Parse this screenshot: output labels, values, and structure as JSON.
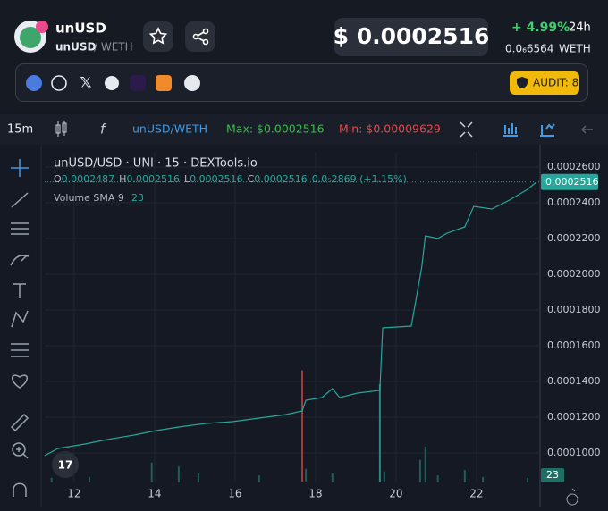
{
  "header": {
    "token": "unUSD",
    "base": "unUSD",
    "quote": "/ WETH",
    "price": "$ 0.0002516",
    "change": "+ 4.99%",
    "period": "24h",
    "native_price": "0.0₆6564",
    "native_unit": "WETH",
    "audit": "AUDIT: 8"
  },
  "toolbar": {
    "interval": "15m",
    "pair": "unUSD/WETH",
    "max": "Max: $0.0002516",
    "min": "Min: $0.00009629"
  },
  "chart_data": {
    "type": "line",
    "title": "unUSD/USD · UNI · 15 · DEXTools.io",
    "ohlc": [
      {
        "key": "O",
        "value": "0.0002487"
      },
      {
        "key": "H",
        "value": "0.0002516"
      },
      {
        "key": "L",
        "value": "0.0002516"
      },
      {
        "key": "C",
        "value": "0.0002516"
      }
    ],
    "ohlc_change": "0.0₅2869 (+1.15%)",
    "volume_name": "Volume SMA 9",
    "volume_sma": 23,
    "last_price": 0.0002516,
    "color": "#26a69a",
    "x": [
      11.27,
      11.6,
      12.27,
      12.82,
      13.49,
      14.04,
      14.6,
      15.27,
      15.93,
      16.6,
      17.27,
      17.67,
      17.76,
      18.16,
      18.42,
      18.6,
      19.04,
      19.6,
      19.67,
      20.38,
      20.64,
      20.73,
      21.04,
      21.27,
      21.71,
      21.93,
      22.38,
      22.82,
      23.27,
      23.49
    ],
    "values": [
      9.85e-05,
      0.0001025,
      0.000105,
      0.0001075,
      0.00011,
      0.0001125,
      0.0001145,
      0.0001165,
      0.0001175,
      0.0001195,
      0.0001215,
      0.0001235,
      0.0001295,
      0.000131,
      0.000136,
      0.000131,
      0.0001335,
      0.000135,
      0.00017,
      0.000171,
      0.000204,
      0.0002215,
      0.00022,
      0.000223,
      0.0002265,
      0.000238,
      0.0002365,
      0.0002415,
      0.0002475,
      0.0002516
    ],
    "xlim": [
      11.27,
      23.58
    ],
    "xticks": [
      12,
      14,
      16,
      18,
      20,
      22
    ],
    "ylim": [
      8.35e-05,
      0.0002685
    ],
    "yticks": [
      {
        "value": 0.0001,
        "label": "0.0001000"
      },
      {
        "value": 0.00012,
        "label": "0.0001200"
      },
      {
        "value": 0.00014,
        "label": "0.0001400"
      },
      {
        "value": 0.00016,
        "label": "0.0001600"
      },
      {
        "value": 0.00018,
        "label": "0.0001800"
      },
      {
        "value": 0.0002,
        "label": "0.0002000"
      },
      {
        "value": 0.00022,
        "label": "0.0002200"
      },
      {
        "value": 0.00024,
        "label": "0.0002400"
      },
      {
        "value": 0.00026,
        "label": "0.0002600"
      }
    ],
    "grid": true,
    "y2lim": [
      0,
      850
    ],
    "volume": {
      "axis": "y2",
      "x": [
        11.44,
        12.38,
        13.93,
        14.6,
        15.09,
        16.6,
        17.67,
        17.76,
        18.42,
        19.6,
        19.71,
        20.6,
        20.73,
        21.04,
        21.71,
        22.16,
        23.27
      ],
      "values": [
        12,
        14,
        51,
        41,
        23,
        18,
        288,
        35,
        23,
        253,
        28,
        58,
        92,
        18,
        32,
        14,
        12
      ],
      "colors": [
        "#1f5f5a",
        "#1f5f5a",
        "#1f5f5a",
        "#1f5f5a",
        "#1f5f5a",
        "#1f5f5a",
        "#a33b3b",
        "#1f5f5a",
        "#1f5f5a",
        "#2a8a80",
        "#1f5f5a",
        "#1f5f5a",
        "#1f5f5a",
        "#1f5f5a",
        "#1f5f5a",
        "#1f5f5a",
        "#1f5f5a"
      ]
    }
  }
}
